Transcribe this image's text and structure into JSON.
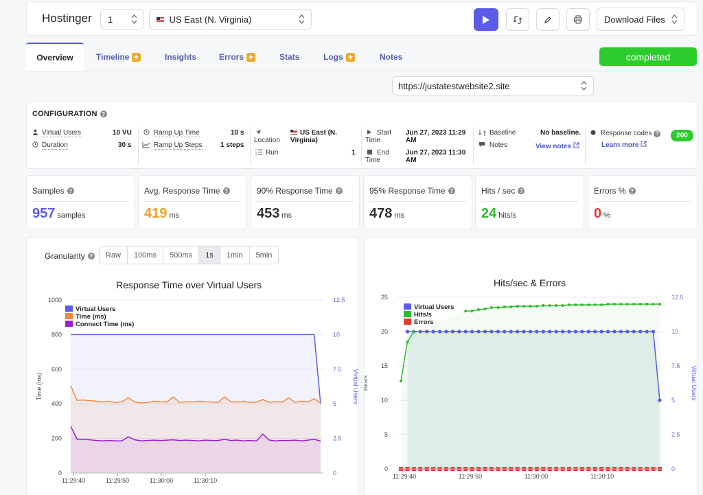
{
  "header": {
    "brand": "Hostinger",
    "run_number": "1",
    "region": "US East (N. Virginia)",
    "download_label": "Download Files"
  },
  "tabs": [
    {
      "label": "Overview"
    },
    {
      "label": "Timeline"
    },
    {
      "label": "Insights"
    },
    {
      "label": "Errors"
    },
    {
      "label": "Stats"
    },
    {
      "label": "Logs"
    },
    {
      "label": "Notes"
    }
  ],
  "status": "completed",
  "url": "https://justatestwebsite2.site",
  "config": {
    "title": "CONFIGURATION",
    "virtual_users_label": "Virtual Users",
    "virtual_users": "10 VU",
    "duration_label": "Duration",
    "duration": "30 s",
    "ramp_up_time_label": "Ramp Up Time",
    "ramp_up_time": "10 s",
    "ramp_up_steps_label": "Ramp Up Steps",
    "ramp_up_steps": "1 steps",
    "location_label": "Location",
    "location_line1": "US East (N.",
    "location_line2": "Virginia)",
    "run_label": "Run",
    "run": "1",
    "start_label1": "Start",
    "start_label2": "Time",
    "start_line1": "Jun 27, 2023 11:29",
    "start_line2": "AM",
    "end_label1": "End",
    "end_label2": "Time",
    "end_line1": "Jun 27, 2023 11:30",
    "end_line2": "AM",
    "baseline_label": "Baseline",
    "baseline": "No baseline.",
    "notes_label": "Notes",
    "view_notes": "View notes",
    "response_codes_label": "Response codes",
    "learn_more": "Learn more",
    "code": "200"
  },
  "stats": [
    {
      "label": "Samples",
      "value": "957",
      "unit": "samples",
      "color": "#5b5be8"
    },
    {
      "label": "Avg. Response Time",
      "value": "419",
      "unit": "ms",
      "color": "#f0a020"
    },
    {
      "label": "90% Response Time",
      "value": "453",
      "unit": "ms",
      "color": "#333333"
    },
    {
      "label": "95% Response Time",
      "value": "478",
      "unit": "ms",
      "color": "#333333"
    },
    {
      "label": "Hits / sec",
      "value": "24",
      "unit": "hits/s",
      "color": "#2dbb2d"
    },
    {
      "label": "Errors %",
      "value": "0",
      "unit": "%",
      "color": "#e53935"
    }
  ],
  "granularity": {
    "label": "Granularity",
    "options": [
      "Raw",
      "100ms",
      "500ms",
      "1s",
      "1min",
      "5min"
    ],
    "selected": "1s"
  },
  "chart_data": [
    {
      "type": "line",
      "title": "Response Time over Virtual Users",
      "ylabel": "Time (ms)",
      "y2label": "Virtual Users",
      "ylim": [
        0,
        1000
      ],
      "y2lim": [
        0,
        12.5
      ],
      "yticks": [
        "0",
        "200",
        "400",
        "600",
        "800",
        "1000"
      ],
      "y2ticks": [
        "0",
        "2.5",
        "5",
        "7.5",
        "10",
        "12.5"
      ],
      "xticks": [
        "11:29:40",
        "11:29:50",
        "11:30:00",
        "11:30:10"
      ],
      "legend": "top-left",
      "series": [
        {
          "name": "Virtual Users",
          "axis": "right",
          "color": "#5b5be8",
          "values": [
            10,
            10,
            10,
            10,
            10,
            10,
            10,
            10,
            10,
            10,
            10,
            10,
            10,
            10,
            10,
            10,
            10,
            10,
            10,
            10,
            10,
            10,
            10,
            10,
            10,
            10,
            10,
            10,
            10,
            10,
            10,
            10,
            10,
            10,
            10,
            10,
            10,
            10,
            10,
            5
          ]
        },
        {
          "name": "Time (ms)",
          "axis": "left",
          "color": "#f0883a",
          "values": [
            505,
            420,
            422,
            418,
            415,
            410,
            415,
            408,
            412,
            435,
            410,
            405,
            408,
            415,
            412,
            410,
            440,
            408,
            412,
            410,
            415,
            412,
            410,
            408,
            440,
            412,
            410,
            415,
            408,
            410,
            425,
            408,
            412,
            410,
            435,
            408,
            415,
            410,
            430,
            405
          ]
        },
        {
          "name": "Connect Time (ms)",
          "axis": "left",
          "color": "#9b1fd0",
          "values": [
            270,
            195,
            195,
            192,
            188,
            186,
            188,
            186,
            186,
            210,
            192,
            186,
            188,
            190,
            188,
            190,
            192,
            188,
            190,
            188,
            186,
            190,
            188,
            188,
            195,
            188,
            190,
            186,
            188,
            186,
            225,
            190,
            186,
            188,
            188,
            190,
            186,
            190,
            195,
            185
          ]
        }
      ]
    },
    {
      "type": "line",
      "title": "Hits/sec & Errors",
      "ylabel": "Hits/s",
      "y2label": "Virtual Users",
      "ylim": [
        0,
        25
      ],
      "y2lim": [
        0,
        12.5
      ],
      "yticks": [
        "0",
        "5",
        "10",
        "15",
        "20",
        "25"
      ],
      "y2ticks": [
        "0",
        "2.5",
        "5",
        "7.5",
        "10",
        "12.5"
      ],
      "xticks": [
        "11:29:40",
        "11:29:50",
        "11:30:00",
        "11:30:10"
      ],
      "legend": "top-left",
      "series": [
        {
          "name": "Virtual Users",
          "axis": "right",
          "color": "#5b5be8",
          "values": [
            null,
            10,
            10,
            10,
            10,
            10,
            10,
            10,
            10,
            10,
            10,
            10,
            10,
            10,
            10,
            10,
            10,
            10,
            10,
            10,
            10,
            10,
            10,
            10,
            10,
            10,
            10,
            10,
            10,
            10,
            10,
            10,
            10,
            10,
            10,
            10,
            10,
            10,
            10,
            10,
            5
          ]
        },
        {
          "name": "Hits/s",
          "axis": "left",
          "color": "#2dbb2d",
          "values": [
            12.8,
            18.5,
            20,
            null,
            null,
            null,
            null,
            null,
            null,
            null,
            23,
            23,
            23.2,
            23.3,
            23.5,
            23.5,
            23.6,
            23.6,
            23.7,
            23.7,
            23.7,
            23.7,
            23.8,
            23.8,
            23.8,
            23.8,
            23.9,
            23.9,
            23.9,
            23.9,
            23.9,
            23.9,
            24,
            24,
            24,
            24,
            24,
            24,
            24,
            24,
            24
          ]
        },
        {
          "name": "Errors",
          "axis": "left",
          "color": "#e53935",
          "values": [
            0,
            0,
            0,
            0,
            0,
            0,
            0,
            0,
            0,
            0,
            0,
            0,
            0,
            0,
            0,
            0,
            0,
            0,
            0,
            0,
            0,
            0,
            0,
            0,
            0,
            0,
            0,
            0,
            0,
            0,
            0,
            0,
            0,
            0,
            0,
            0,
            0,
            0,
            0,
            0,
            0
          ]
        }
      ]
    }
  ]
}
